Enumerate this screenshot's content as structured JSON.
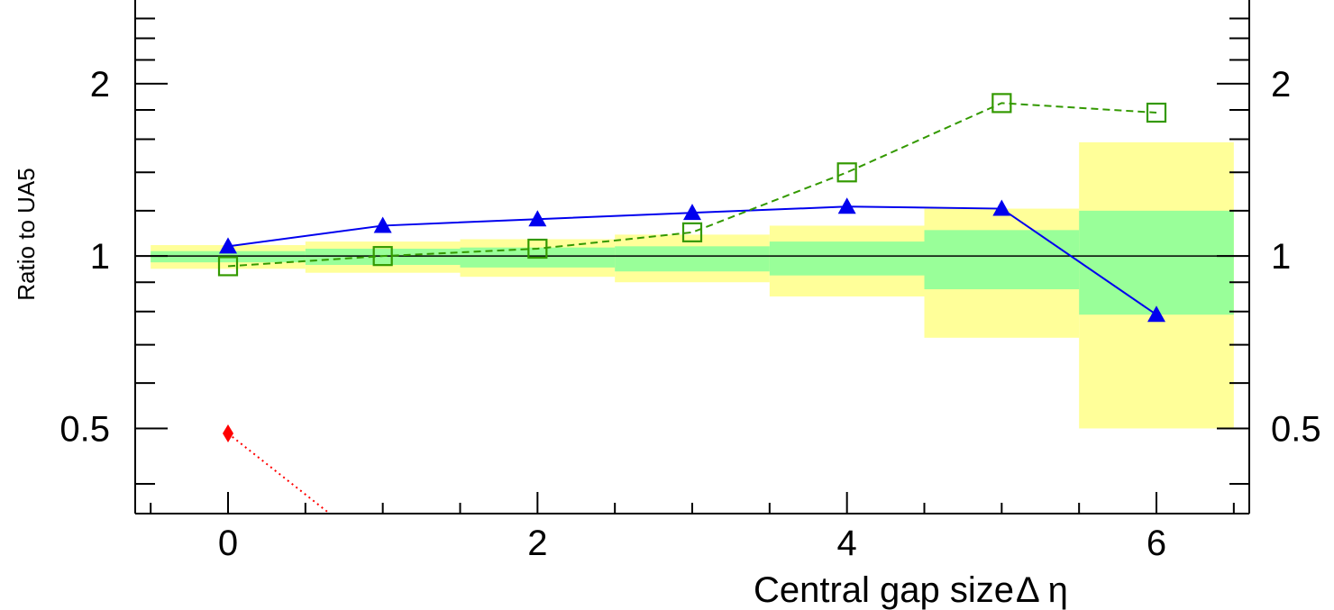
{
  "chart_data": {
    "type": "line",
    "xlabel": "Central gap size",
    "xlabel_symbol": "Δ η",
    "ylabel": "Ratio to UA5",
    "y_log_scale": true,
    "xlim": [
      -0.6,
      6.6
    ],
    "ylim": [
      0.355,
      2.8
    ],
    "reference_line": 1,
    "x_ticks": [
      "0",
      "2",
      "4",
      "6"
    ],
    "y_ticks_left": [
      "0.5",
      "1",
      "2"
    ],
    "y_ticks_right": [
      "0.5",
      "1",
      "2"
    ],
    "bands": {
      "bins": [
        [
          -0.5,
          0.5
        ],
        [
          0.5,
          1.5
        ],
        [
          1.5,
          2.5
        ],
        [
          2.5,
          3.5
        ],
        [
          3.5,
          4.5
        ],
        [
          4.5,
          5.5
        ],
        [
          5.5,
          6.5
        ]
      ],
      "outer": {
        "color": "#ffff99",
        "lo": [
          0.95,
          0.935,
          0.92,
          0.9,
          0.85,
          0.72,
          0.5
        ],
        "hi": [
          1.045,
          1.06,
          1.07,
          1.09,
          1.13,
          1.21,
          1.58
        ]
      },
      "inner": {
        "color": "#99ff99",
        "lo": [
          0.975,
          0.965,
          0.955,
          0.94,
          0.925,
          0.875,
          0.79
        ],
        "hi": [
          1.02,
          1.03,
          1.035,
          1.04,
          1.06,
          1.11,
          1.2
        ]
      }
    },
    "series": [
      {
        "color": "#0000ee",
        "marker": "triangle",
        "line": "solid",
        "x": [
          0,
          1,
          2,
          3,
          4,
          5,
          6
        ],
        "y": [
          1.04,
          1.13,
          1.16,
          1.19,
          1.22,
          1.21,
          0.79
        ]
      },
      {
        "color": "#339900",
        "marker": "open-square",
        "line": "dashed",
        "x": [
          0,
          1,
          2,
          3,
          4,
          5,
          6
        ],
        "y": [
          0.96,
          1.0,
          1.03,
          1.1,
          1.4,
          1.85,
          1.78
        ]
      },
      {
        "color": "#ff0000",
        "marker": "diamond",
        "line": "dotted",
        "x": [
          0,
          1
        ],
        "y": [
          0.49,
          0.3
        ]
      }
    ]
  }
}
